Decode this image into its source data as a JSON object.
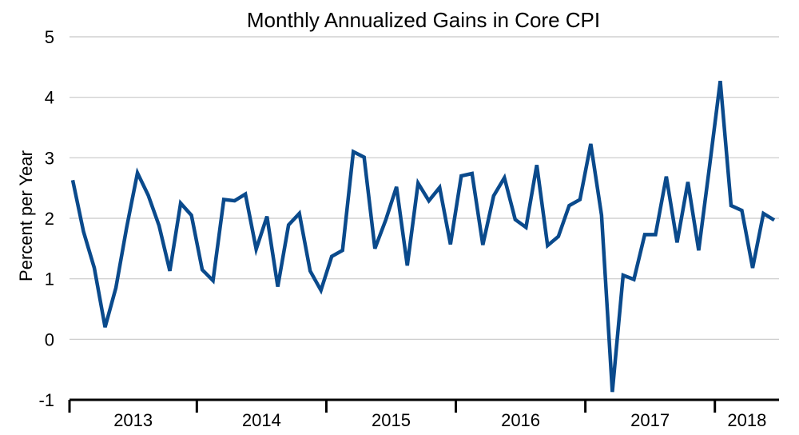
{
  "chart_data": {
    "type": "line",
    "title": "Monthly Annualized Gains in Core CPI",
    "ylabel": "Percent per Year",
    "xlabel": "",
    "ylim": [
      -1,
      5
    ],
    "yticks": [
      "-1",
      "0",
      "1",
      "2",
      "3",
      "4",
      "5"
    ],
    "ytick_values": [
      -1,
      0,
      1,
      2,
      3,
      4,
      5
    ],
    "grid": true,
    "line_color": "#0a4a8c",
    "year_labels": [
      "2013",
      "2014",
      "2015",
      "2016",
      "2017",
      "2018"
    ],
    "months_per_year": [
      12,
      12,
      12,
      12,
      12,
      6
    ],
    "series": [
      {
        "name": "Core CPI monthly annualized gain",
        "values": [
          2.63,
          1.78,
          1.18,
          0.2,
          0.85,
          1.85,
          2.75,
          2.38,
          1.88,
          1.13,
          2.25,
          2.05,
          1.15,
          0.97,
          2.31,
          2.29,
          2.4,
          1.49,
          2.03,
          0.87,
          1.89,
          2.08,
          1.13,
          0.81,
          1.37,
          1.47,
          3.1,
          3.01,
          1.5,
          1.97,
          2.52,
          1.22,
          2.58,
          2.29,
          2.51,
          1.57,
          2.7,
          2.74,
          1.56,
          2.37,
          2.67,
          1.98,
          1.85,
          2.88,
          1.55,
          1.7,
          2.21,
          2.31,
          3.23,
          2.05,
          -0.87,
          1.06,
          0.99,
          1.73,
          1.73,
          2.69,
          1.6,
          2.6,
          1.47,
          2.85,
          4.27,
          2.21,
          2.13,
          1.18,
          2.08,
          1.97
        ]
      }
    ]
  }
}
